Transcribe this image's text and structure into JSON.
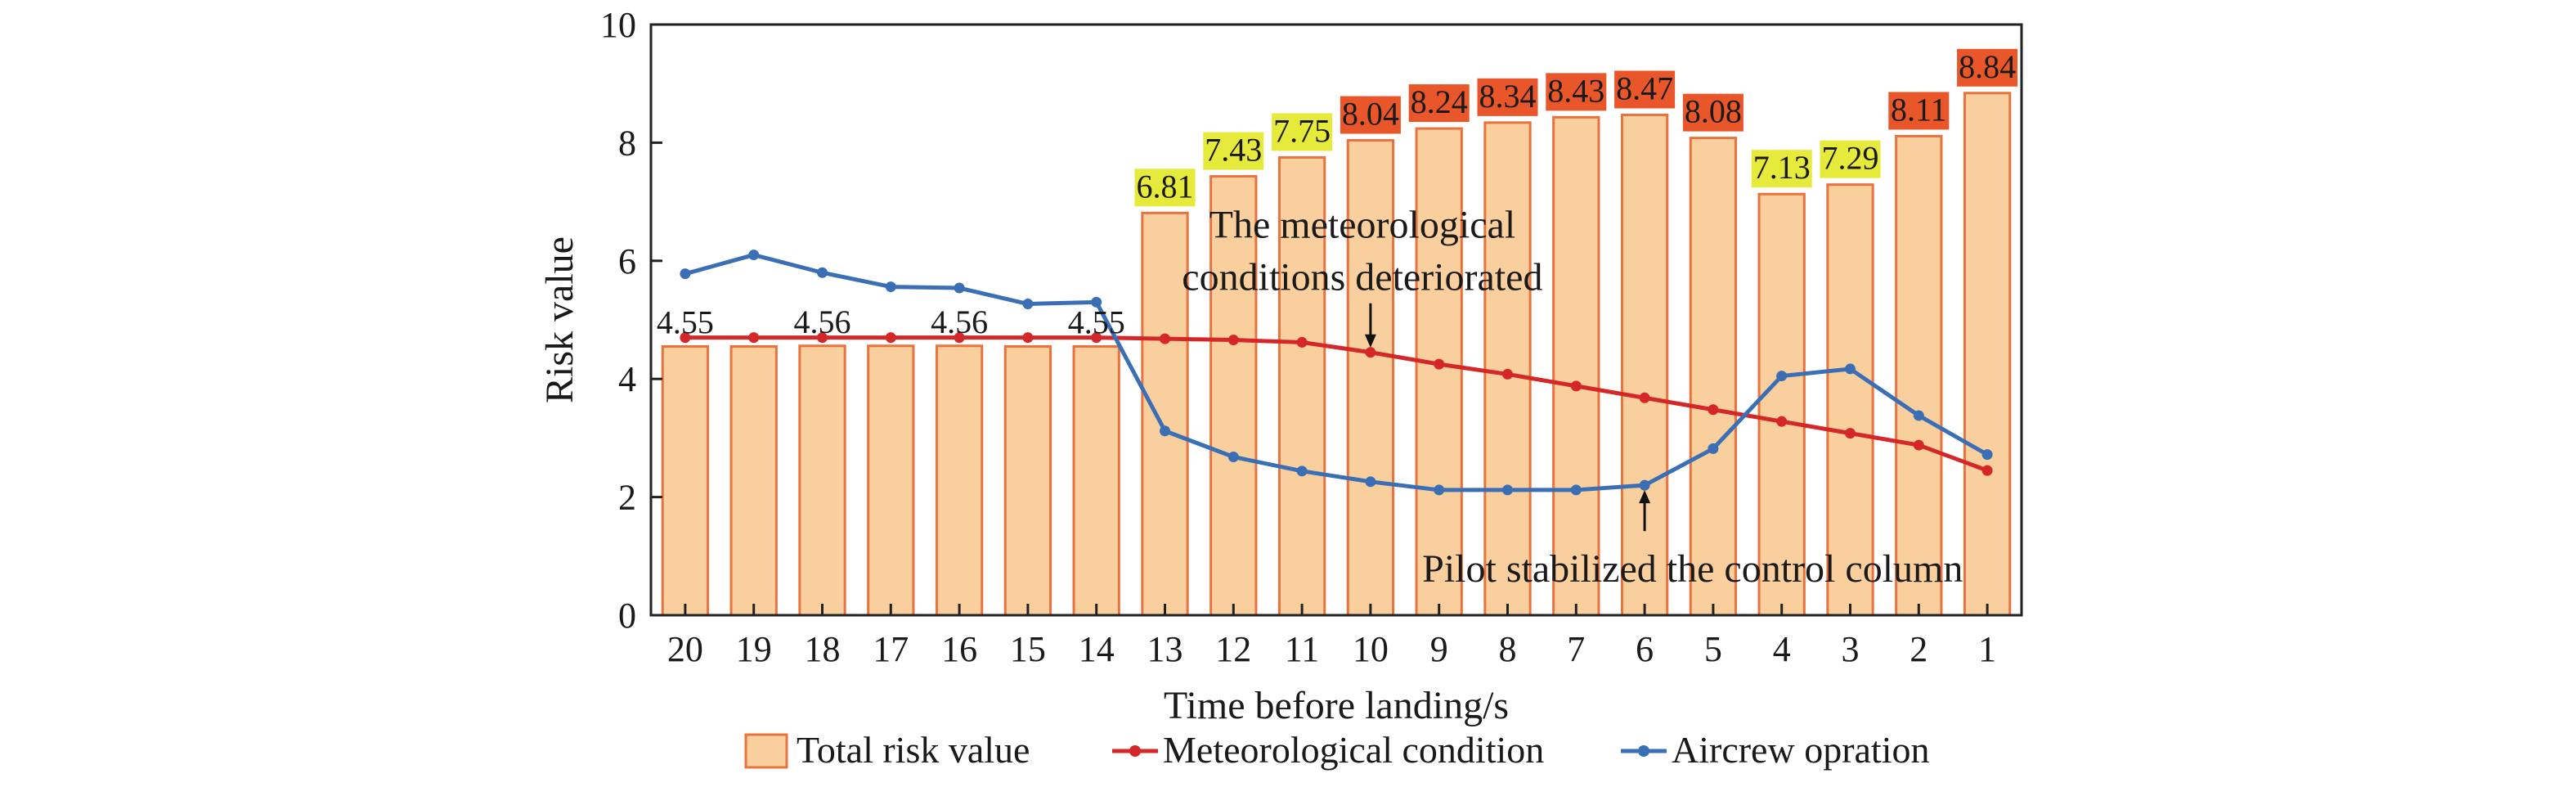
{
  "chart_data": {
    "type": "bar",
    "xlabel": "Time before landing/s",
    "ylabel": "Risk value",
    "ylim": [
      0,
      10
    ],
    "yticks": [
      "0",
      "2",
      "4",
      "6",
      "8",
      "10"
    ],
    "categories": [
      "20",
      "19",
      "18",
      "17",
      "16",
      "15",
      "14",
      "13",
      "12",
      "11",
      "10",
      "9",
      "8",
      "7",
      "6",
      "5",
      "4",
      "3",
      "2",
      "1"
    ],
    "series": [
      {
        "name": "Total risk value",
        "type": "bar",
        "color": "#f9cf9e",
        "edge_color": "#e8733e",
        "values": [
          4.55,
          4.55,
          4.56,
          4.56,
          4.56,
          4.55,
          4.55,
          6.81,
          7.43,
          7.75,
          8.04,
          8.24,
          8.34,
          8.43,
          8.47,
          8.08,
          7.13,
          7.29,
          8.11,
          8.84
        ]
      },
      {
        "name": "Meteorological condition",
        "type": "line",
        "color": "#d62728",
        "values": [
          4.7,
          4.7,
          4.7,
          4.7,
          4.7,
          4.7,
          4.7,
          4.68,
          4.66,
          4.62,
          4.45,
          4.25,
          4.08,
          3.88,
          3.68,
          3.48,
          3.28,
          3.08,
          2.88,
          2.45
        ]
      },
      {
        "name": "Aircrew opration",
        "type": "line",
        "color": "#3a6fb5",
        "values": [
          5.78,
          6.1,
          5.8,
          5.56,
          5.54,
          5.27,
          5.3,
          3.12,
          2.68,
          2.44,
          2.26,
          2.12,
          2.12,
          2.12,
          2.2,
          2.82,
          4.05,
          4.17,
          3.38,
          2.72
        ]
      }
    ],
    "data_labels": [
      {
        "index": 0,
        "text": "4.55",
        "style": "plain"
      },
      {
        "index": 2,
        "text": "4.56",
        "style": "plain"
      },
      {
        "index": 4,
        "text": "4.56",
        "style": "plain"
      },
      {
        "index": 6,
        "text": "4.55",
        "style": "plain"
      },
      {
        "index": 7,
        "text": "6.81",
        "style": "yellow"
      },
      {
        "index": 8,
        "text": "7.43",
        "style": "yellow"
      },
      {
        "index": 9,
        "text": "7.75",
        "style": "yellow"
      },
      {
        "index": 10,
        "text": "8.04",
        "style": "orange"
      },
      {
        "index": 11,
        "text": "8.24",
        "style": "orange"
      },
      {
        "index": 12,
        "text": "8.34",
        "style": "orange"
      },
      {
        "index": 13,
        "text": "8.43",
        "style": "orange"
      },
      {
        "index": 14,
        "text": "8.47",
        "style": "orange"
      },
      {
        "index": 15,
        "text": "8.08",
        "style": "orange"
      },
      {
        "index": 16,
        "text": "7.13",
        "style": "yellow"
      },
      {
        "index": 17,
        "text": "7.29",
        "style": "yellow"
      },
      {
        "index": 18,
        "text": "8.11",
        "style": "orange"
      },
      {
        "index": 19,
        "text": "8.84",
        "style": "orange"
      }
    ],
    "label_colors": {
      "yellow": "#e6ea3a",
      "orange": "#e8562a"
    },
    "annotations": [
      {
        "lines": [
          "The meteorological",
          "conditions deteriorated"
        ],
        "index": 10,
        "series": "Meteorological condition",
        "text_pos": "above"
      },
      {
        "lines": [
          "Pilot stabilized the control column"
        ],
        "index": 14,
        "series": "Aircrew opration",
        "text_pos": "below"
      }
    ],
    "legend": {
      "placement": "bottom-center"
    },
    "grid": false
  }
}
